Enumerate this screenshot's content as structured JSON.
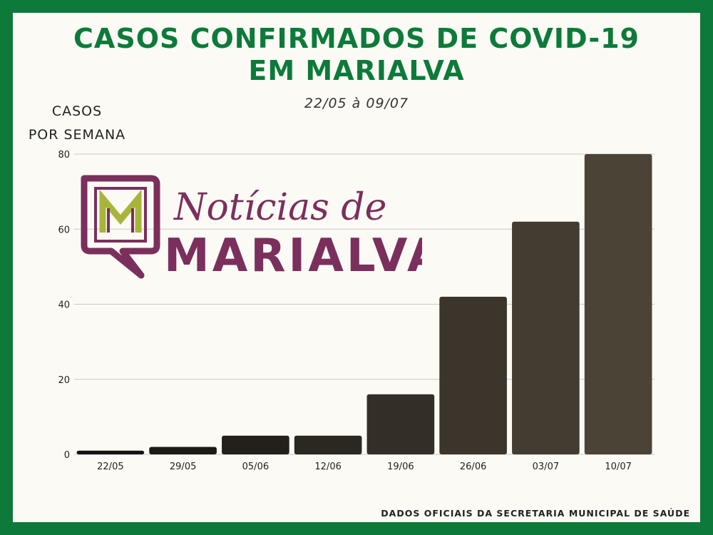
{
  "header": {
    "title_line1": "CASOS CONFIRMADOS DE COVID-19",
    "title_line2": "EM MARIALVA",
    "subtitle": "22/05 à 09/07"
  },
  "axis": {
    "ylabel_line1": "CASOS",
    "ylabel_line2": "POR SEMANA"
  },
  "logo": {
    "script_text": "Notícias de",
    "block_text": "MARIALVA",
    "monogram": "M",
    "colors": {
      "plum": "#7b2f5c",
      "olive": "#a9b53a"
    }
  },
  "footer": {
    "source": "DADOS OFICIAIS DA SECRETARIA MUNICIPAL DE SAÚDE"
  },
  "colors": {
    "frame": "#0d7a3a",
    "background": "#fbfaf5",
    "title": "#0d7a3a",
    "bar_start": "#141212",
    "bar_end": "#4a4336",
    "grid": "#c8c8c8"
  },
  "chart_data": {
    "type": "bar",
    "title": "CASOS CONFIRMADOS DE COVID-19 EM MARIALVA",
    "subtitle": "22/05 à 09/07",
    "ylabel": "CASOS POR SEMANA",
    "xlabel": "",
    "categories": [
      "22/05",
      "29/05",
      "05/06",
      "12/06",
      "19/06",
      "26/06",
      "03/07",
      "10/07"
    ],
    "values": [
      1,
      2,
      5,
      5,
      16,
      42,
      62,
      80
    ],
    "ylim": [
      0,
      80
    ],
    "yticks": [
      0,
      20,
      40,
      60,
      80
    ],
    "grid": true,
    "legend": "none"
  }
}
